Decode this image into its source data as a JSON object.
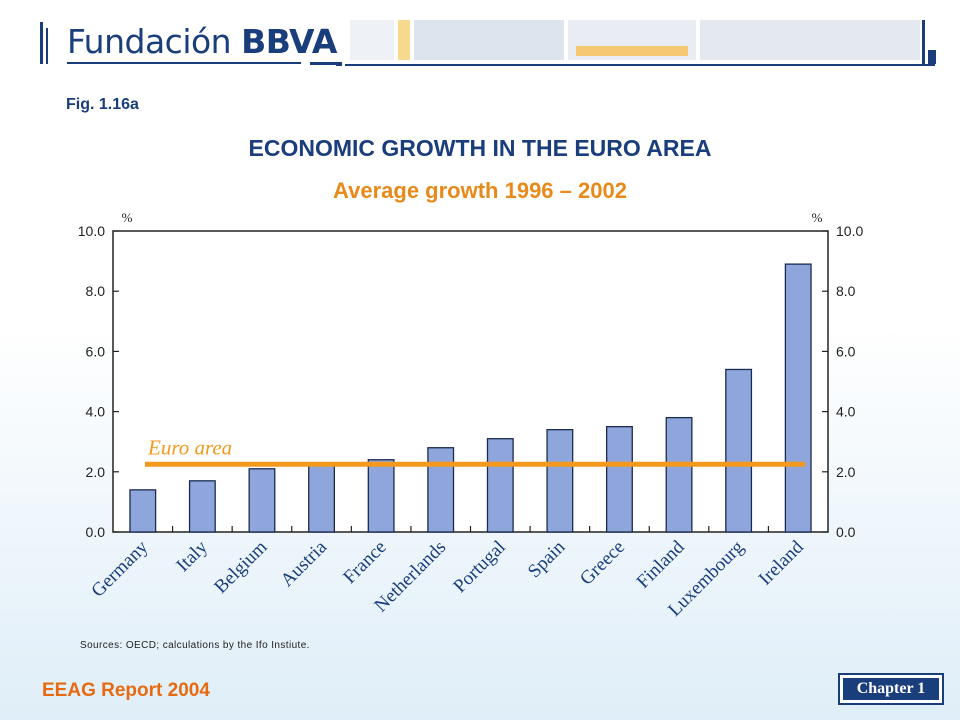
{
  "header": {
    "logo_text_regular": "Fundación",
    "logo_text_bold": "BBVA"
  },
  "figure": {
    "label": "Fig. 1.16a",
    "title": "ECONOMIC GROWTH IN THE EURO AREA",
    "subtitle": "Average growth 1996 – 2002",
    "source": "Sources: OECD; calculations by the Ifo Instiute."
  },
  "footer": {
    "report": "EEAG Report 2004",
    "chapter": "Chapter 1"
  },
  "chart_data": {
    "type": "bar",
    "categories": [
      "Germany",
      "Italy",
      "Belgium",
      "Austria",
      "France",
      "Netherlands",
      "Portugal",
      "Spain",
      "Greece",
      "Finland",
      "Luxembourg",
      "Ireland"
    ],
    "values": [
      1.4,
      1.7,
      2.1,
      2.3,
      2.4,
      2.8,
      3.1,
      3.4,
      3.5,
      3.8,
      5.4,
      8.9
    ],
    "ylim": [
      0,
      10
    ],
    "yticks": [
      "0.0",
      "2.0",
      "4.0",
      "6.0",
      "8.0",
      "10.0"
    ],
    "y_unit_left": "%",
    "y_unit_right": "%",
    "reference_line": {
      "label": "Euro area",
      "value": 2.25
    },
    "colors": {
      "bar": "#8fa6dc",
      "bar_stroke": "#1a2a50",
      "reference": "#f39a1e",
      "reference_label": "#f39a1e"
    }
  }
}
